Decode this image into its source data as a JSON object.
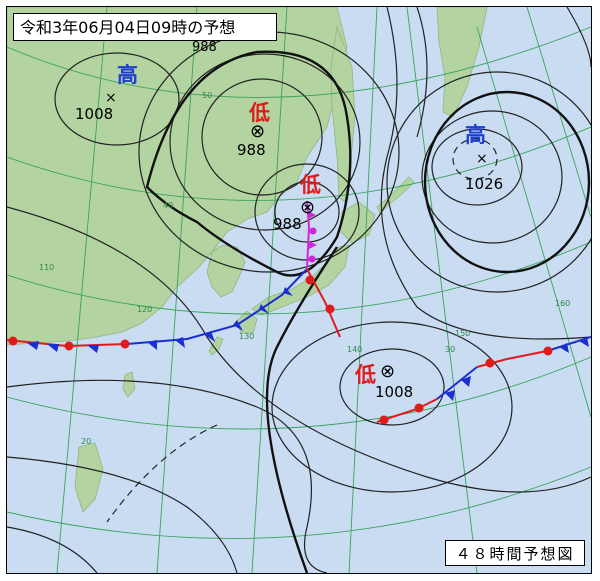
{
  "map": {
    "title": "令和3年06月04日09時の予想",
    "caption": "４８時間予想図",
    "isobars_shown": [
      "1008",
      "988",
      "988",
      "1026",
      "1008"
    ],
    "pressure_systems": [
      {
        "type": "high",
        "label": "高",
        "value": "1008",
        "marker": "×"
      },
      {
        "type": "low",
        "label": "低",
        "value": "988",
        "marker": "⊗"
      },
      {
        "type": "low",
        "label": "低",
        "value": "988",
        "marker": "⊗"
      },
      {
        "type": "high",
        "label": "高",
        "value": "1026",
        "marker": "×"
      },
      {
        "type": "low",
        "label": "低",
        "value": "1008",
        "marker": "⊗"
      }
    ],
    "grid_labels": [
      "50",
      "40",
      "30",
      "20",
      "110",
      "120",
      "130",
      "140",
      "150",
      "160"
    ],
    "colors": {
      "sea": "#c9dcf2",
      "land": "#b3d4a0",
      "isobar": "#222222",
      "grid": "#3aa35c",
      "low_label": "#e01b1b",
      "high_label": "#1f3fd0",
      "cold_front": "#1b2fd0",
      "warm_front": "#e01b1b",
      "occluded_front": "#d028d8"
    }
  }
}
